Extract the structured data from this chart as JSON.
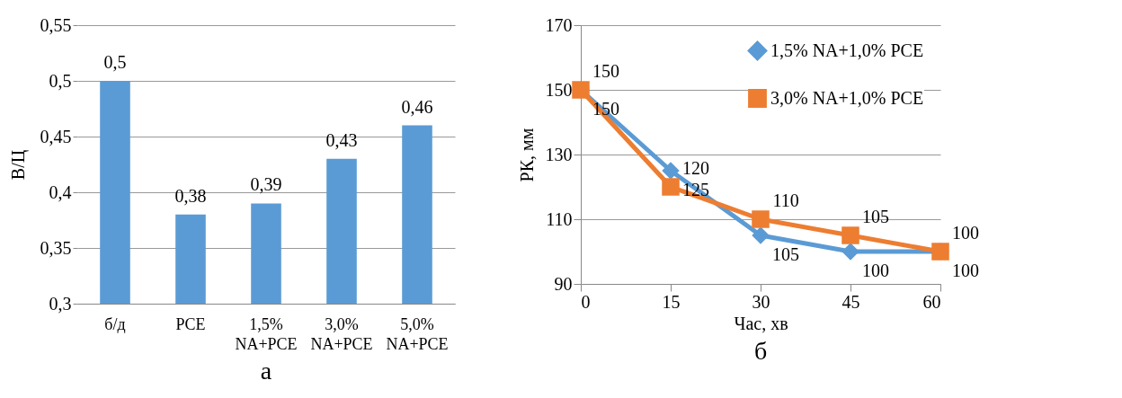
{
  "chart_data": [
    {
      "type": "bar",
      "title": "а",
      "ylabel": "В/Ц",
      "categories": [
        "б/д",
        "PCE",
        "1,5% NA+PCE",
        "3,0% NA+PCE",
        "5,0% NA+PCE"
      ],
      "values": [
        0.5,
        0.38,
        0.39,
        0.43,
        0.46
      ],
      "value_labels": [
        "0,5",
        "0,38",
        "0,39",
        "0,43",
        "0,46"
      ],
      "color": "#5b9bd5",
      "ylim": [
        0.3,
        0.55
      ],
      "yticks": [
        {
          "value": 0.3,
          "label": "0,3"
        },
        {
          "value": 0.35,
          "label": "0,35"
        },
        {
          "value": 0.4,
          "label": "0,4"
        },
        {
          "value": 0.45,
          "label": "0,45"
        },
        {
          "value": 0.5,
          "label": "0,5"
        },
        {
          "value": 0.55,
          "label": "0,55"
        }
      ],
      "grid": "y"
    },
    {
      "type": "line",
      "title": "б",
      "xlabel": "Час, хв",
      "ylabel": "РК, мм",
      "x": [
        0,
        15,
        30,
        45,
        60
      ],
      "series": [
        {
          "name": "1,5% NA+1,0% PCE",
          "color": "#5b9bd5",
          "marker": "diamond",
          "values": [
            150,
            125,
            105,
            100,
            100
          ]
        },
        {
          "name": "3,0% NA+1,0% PCE",
          "color": "#ed7d31",
          "marker": "square",
          "values": [
            150,
            120,
            110,
            105,
            100
          ]
        }
      ],
      "data_labels": true,
      "xlim": [
        0,
        60
      ],
      "xticks": [
        0,
        15,
        30,
        45,
        60
      ],
      "ylim": [
        90,
        170
      ],
      "yticks": [
        90,
        110,
        130,
        150,
        170
      ],
      "grid": "y",
      "legend": "top right"
    }
  ]
}
